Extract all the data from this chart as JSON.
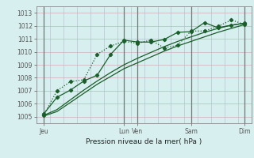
{
  "xlabel": "Pression niveau de la mer( hPa )",
  "bg_color": "#d8eff0",
  "grid_color_h": "#d4b8c0",
  "grid_color_v": "#b0b8c8",
  "line_color": "#1a5e2a",
  "ylim": [
    1004.5,
    1013.5
  ],
  "yticks": [
    1005,
    1006,
    1007,
    1008,
    1009,
    1010,
    1011,
    1012,
    1013
  ],
  "xtick_labels": [
    "Jeu",
    "Lun",
    "Ven",
    "Sam",
    "Dim"
  ],
  "xtick_positions": [
    0,
    6,
    7,
    11,
    15
  ],
  "xvlines": [
    0,
    6,
    7,
    11,
    15
  ],
  "xlim": [
    -0.5,
    15.5
  ],
  "series1_x": [
    0,
    1,
    2,
    3,
    4,
    5,
    6,
    7,
    8,
    9,
    10,
    11,
    12,
    13,
    14,
    15
  ],
  "series1_y": [
    1005.2,
    1006.5,
    1007.05,
    1007.75,
    1008.2,
    1009.8,
    1010.9,
    1010.75,
    1010.75,
    1010.95,
    1011.5,
    1011.55,
    1012.25,
    1011.85,
    1012.05,
    1012.2
  ],
  "series2_x": [
    0,
    1,
    2,
    3,
    4,
    5,
    6,
    7,
    8,
    9,
    10,
    11,
    12,
    13,
    14,
    15
  ],
  "series2_y": [
    1005.1,
    1007.0,
    1007.7,
    1007.85,
    1009.8,
    1010.45,
    1010.8,
    1010.65,
    1010.9,
    1010.3,
    1010.5,
    1011.6,
    1011.6,
    1011.95,
    1012.45,
    1012.1
  ],
  "series3_x": [
    0,
    1,
    2,
    3,
    4,
    5,
    6,
    7,
    8,
    9,
    10,
    11,
    12,
    13,
    14,
    15
  ],
  "series3_y": [
    1005.05,
    1005.4,
    1006.1,
    1006.8,
    1007.5,
    1008.1,
    1008.7,
    1009.15,
    1009.6,
    1010.05,
    1010.45,
    1010.8,
    1011.15,
    1011.5,
    1011.8,
    1012.1
  ],
  "series4_x": [
    0,
    1,
    2,
    3,
    4,
    5,
    6,
    7,
    8,
    9,
    10,
    11,
    12,
    13,
    14,
    15
  ],
  "series4_y": [
    1005.1,
    1005.55,
    1006.3,
    1007.05,
    1007.75,
    1008.4,
    1009.0,
    1009.5,
    1009.95,
    1010.4,
    1010.8,
    1011.15,
    1011.5,
    1011.8,
    1012.05,
    1012.2
  ]
}
